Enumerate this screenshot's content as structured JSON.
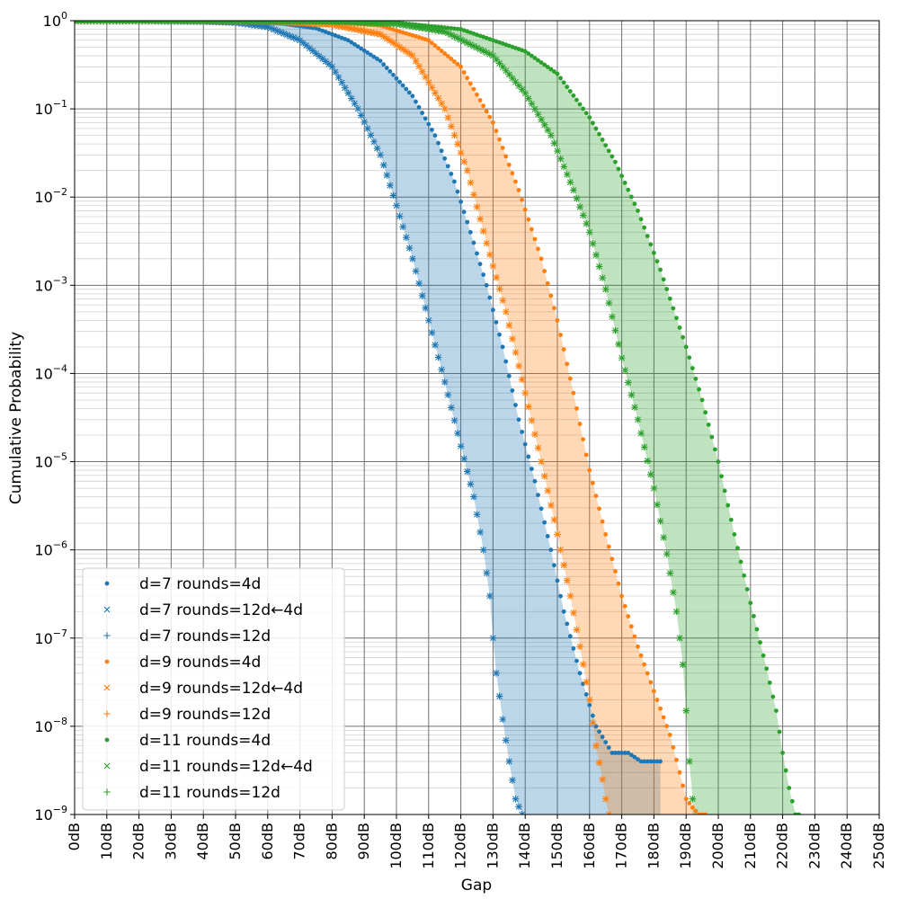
{
  "chart_data": {
    "type": "scatter",
    "title": "",
    "xlabel": "Gap",
    "ylabel": "Cumulative Probability",
    "x_unit_suffix": "dB",
    "xlim": [
      0,
      250
    ],
    "ylim": [
      1e-09,
      1
    ],
    "yscale": "log",
    "grid": true,
    "legend_position": "lower-left",
    "x_tick_labels": [
      "0dB",
      "10dB",
      "20dB",
      "30dB",
      "40dB",
      "50dB",
      "60dB",
      "70dB",
      "80dB",
      "90dB",
      "100dB",
      "110dB",
      "120dB",
      "130dB",
      "140dB",
      "150dB",
      "160dB",
      "170dB",
      "180dB",
      "190dB",
      "200dB",
      "210dB",
      "220dB",
      "230dB",
      "240dB",
      "250dB"
    ],
    "y_ticks": [
      {
        "base": "10",
        "exp": "0"
      },
      {
        "base": "10",
        "exp": "−1"
      },
      {
        "base": "10",
        "exp": "−2"
      },
      {
        "base": "10",
        "exp": "−3"
      },
      {
        "base": "10",
        "exp": "−4"
      },
      {
        "base": "10",
        "exp": "−5"
      },
      {
        "base": "10",
        "exp": "−6"
      },
      {
        "base": "10",
        "exp": "−7"
      },
      {
        "base": "10",
        "exp": "−8"
      },
      {
        "base": "10",
        "exp": "−9"
      }
    ],
    "groups": [
      {
        "color": "#1f77b4",
        "fill_lower": "d=7 rounds=12d←4d",
        "fill_upper": "d=7 rounds=4d"
      },
      {
        "color": "#ff7f0e",
        "fill_lower": "d=9 rounds=12d←4d",
        "fill_upper": "d=9 rounds=4d"
      },
      {
        "color": "#2ca02c",
        "fill_lower": "d=11 rounds=12d←4d",
        "fill_upper": "d=11 rounds=4d"
      }
    ],
    "series": [
      {
        "name": "d=7 rounds=4d",
        "color": "#1f77b4",
        "marker": "dot",
        "x": [
          0,
          20,
          40,
          55,
          65,
          75,
          85,
          95,
          105,
          112,
          118,
          123,
          128,
          133,
          138,
          143,
          148,
          152,
          157,
          162,
          167,
          172,
          176,
          180,
          182
        ],
        "y": [
          1,
          0.999,
          0.99,
          0.97,
          0.92,
          0.82,
          0.6,
          0.35,
          0.14,
          0.05,
          0.015,
          0.004,
          0.001,
          0.0002,
          3e-05,
          6e-06,
          1e-06,
          2e-07,
          4e-08,
          1e-08,
          5e-09,
          5e-09,
          4e-09,
          4e-09,
          4e-09
        ]
      },
      {
        "name": "d=7 rounds=12d←4d",
        "color": "#1f77b4",
        "marker": "x",
        "x": [
          0,
          20,
          40,
          50,
          60,
          70,
          80,
          88,
          95,
          100,
          105,
          110,
          115,
          120,
          124,
          127,
          129,
          130,
          131,
          133,
          135,
          137,
          139
        ],
        "y": [
          1,
          0.998,
          0.98,
          0.95,
          0.85,
          0.6,
          0.3,
          0.1,
          0.03,
          0.008,
          0.002,
          0.0004,
          8e-05,
          1.5e-05,
          4e-06,
          1e-06,
          3e-07,
          1e-07,
          4e-08,
          1.2e-08,
          4e-09,
          1.5e-09,
          1e-09
        ]
      },
      {
        "name": "d=7 rounds=12d",
        "color": "#1f77b4",
        "marker": "plus",
        "x": [
          0,
          20,
          40,
          50,
          60,
          70,
          80,
          88,
          95,
          100,
          105,
          110,
          115,
          120,
          124,
          127,
          129,
          130,
          131,
          133,
          135,
          137,
          139
        ],
        "y": [
          1,
          0.998,
          0.98,
          0.95,
          0.85,
          0.6,
          0.3,
          0.1,
          0.03,
          0.008,
          0.002,
          0.0004,
          8e-05,
          1.5e-05,
          4e-06,
          1e-06,
          3e-07,
          1e-07,
          4e-08,
          1.2e-08,
          4e-09,
          1.5e-09,
          1e-09
        ]
      },
      {
        "name": "d=9 rounds=4d",
        "color": "#ff7f0e",
        "marker": "dot",
        "x": [
          0,
          30,
          60,
          80,
          95,
          110,
          120,
          130,
          138,
          145,
          150,
          155,
          160,
          165,
          170,
          175,
          180,
          185,
          188,
          190,
          192,
          194,
          196
        ],
        "y": [
          1,
          0.999,
          0.99,
          0.96,
          0.88,
          0.6,
          0.3,
          0.07,
          0.012,
          0.002,
          0.0004,
          6e-05,
          8e-06,
          1.5e-06,
          3e-07,
          8e-08,
          2.5e-08,
          8e-09,
          3e-09,
          1.5e-09,
          1.2e-09,
          1e-09,
          1e-09
        ]
      },
      {
        "name": "d=9 rounds=12d←4d",
        "color": "#ff7f0e",
        "marker": "x",
        "x": [
          0,
          30,
          60,
          80,
          95,
          105,
          115,
          122,
          128,
          134,
          140,
          145,
          150,
          154,
          157,
          160,
          162,
          164,
          165,
          166
        ],
        "y": [
          1,
          0.999,
          0.98,
          0.9,
          0.7,
          0.4,
          0.1,
          0.02,
          0.003,
          0.0005,
          6e-05,
          1e-05,
          1.5e-06,
          3e-07,
          8e-08,
          2e-08,
          6e-09,
          2.5e-09,
          1.5e-09,
          1e-09
        ]
      },
      {
        "name": "d=9 rounds=12d",
        "color": "#ff7f0e",
        "marker": "plus",
        "x": [
          0,
          30,
          60,
          80,
          95,
          105,
          115,
          122,
          128,
          134,
          140,
          145,
          150,
          154,
          157,
          160,
          162,
          164,
          165,
          166
        ],
        "y": [
          1,
          0.999,
          0.98,
          0.9,
          0.7,
          0.4,
          0.1,
          0.02,
          0.003,
          0.0005,
          6e-05,
          1e-05,
          1.5e-06,
          3e-07,
          8e-08,
          2e-08,
          6e-09,
          2.5e-09,
          1.5e-09,
          1e-09
        ]
      },
      {
        "name": "d=11 rounds=4d",
        "color": "#2ca02c",
        "marker": "dot",
        "x": [
          0,
          40,
          80,
          100,
          120,
          140,
          150,
          160,
          168,
          175,
          182,
          190,
          195,
          200,
          205,
          210,
          215,
          218,
          220,
          222,
          224,
          225
        ],
        "y": [
          1,
          0.999,
          0.99,
          0.95,
          0.8,
          0.45,
          0.25,
          0.08,
          0.025,
          0.007,
          0.0015,
          0.0002,
          5e-05,
          1e-05,
          1.5e-06,
          2.5e-07,
          4.5e-08,
          1.5e-08,
          5e-09,
          2e-09,
          1e-09,
          1e-09
        ]
      },
      {
        "name": "d=11 rounds=12d←4d",
        "color": "#2ca02c",
        "marker": "x",
        "x": [
          0,
          40,
          80,
          100,
          115,
          130,
          140,
          148,
          155,
          160,
          165,
          170,
          175,
          180,
          184,
          187,
          189,
          190,
          191,
          192
        ],
        "y": [
          1,
          0.999,
          0.98,
          0.92,
          0.75,
          0.4,
          0.15,
          0.05,
          0.012,
          0.004,
          0.0009,
          0.00015,
          3e-05,
          5e-06,
          9e-07,
          2e-07,
          5e-08,
          1.5e-08,
          4e-09,
          1.5e-09
        ]
      },
      {
        "name": "d=11 rounds=12d",
        "color": "#2ca02c",
        "marker": "plus",
        "x": [
          0,
          40,
          80,
          100,
          115,
          130,
          140,
          148,
          155,
          160,
          165,
          170,
          175,
          180,
          184,
          187,
          189,
          190,
          191,
          192
        ],
        "y": [
          1,
          0.999,
          0.98,
          0.92,
          0.75,
          0.4,
          0.15,
          0.05,
          0.012,
          0.004,
          0.0009,
          0.00015,
          3e-05,
          5e-06,
          9e-07,
          2e-07,
          5e-08,
          1.5e-08,
          4e-09,
          1.5e-09
        ]
      }
    ]
  }
}
